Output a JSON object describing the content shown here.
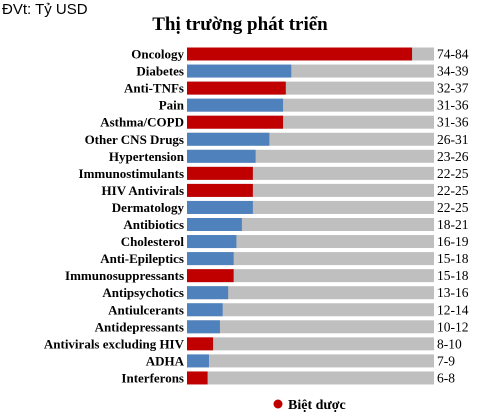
{
  "unit_label": "ĐVt: Tỷ USD",
  "colors": {
    "highlight": "#c00000",
    "normal": "#4f81bd",
    "track": "#bfbfbf"
  },
  "legend": {
    "label": "Biệt dược",
    "color": "#c00000"
  },
  "chart_data": {
    "type": "bar",
    "orientation": "horizontal",
    "title": "Thị trường phát triển",
    "xlim": [
      0,
      90
    ],
    "categories": [
      "Oncology",
      "Diabetes",
      "Anti-TNFs",
      "Pain",
      "Asthma/COPD",
      "Other CNS Drugs",
      "Hypertension",
      "Immunostimulants",
      "HIV Antivirals",
      "Dermatology",
      "Antibiotics",
      "Cholesterol",
      "Anti-Epileptics",
      "Immunosuppressants",
      "Antipsychotics",
      "Antiulcerants",
      "Antidepressants",
      "Antivirals excluding HIV",
      "ADHA",
      "Interferons"
    ],
    "ranges": [
      "74-84",
      "34-39",
      "32-37",
      "31-36",
      "31-36",
      "26-31",
      "23-26",
      "22-25",
      "22-25",
      "22-25",
      "18-21",
      "16-19",
      "15-18",
      "15-18",
      "13-16",
      "12-14",
      "10-12",
      "8-10",
      "7-9",
      "6-8"
    ],
    "values": [
      82,
      38,
      36,
      35,
      35,
      30,
      25,
      24,
      24,
      24,
      20,
      18,
      17,
      17,
      15,
      13,
      12,
      9.5,
      8,
      7.5
    ],
    "highlighted": [
      true,
      false,
      true,
      false,
      true,
      false,
      false,
      true,
      true,
      false,
      false,
      false,
      false,
      true,
      false,
      false,
      false,
      true,
      false,
      true
    ]
  }
}
